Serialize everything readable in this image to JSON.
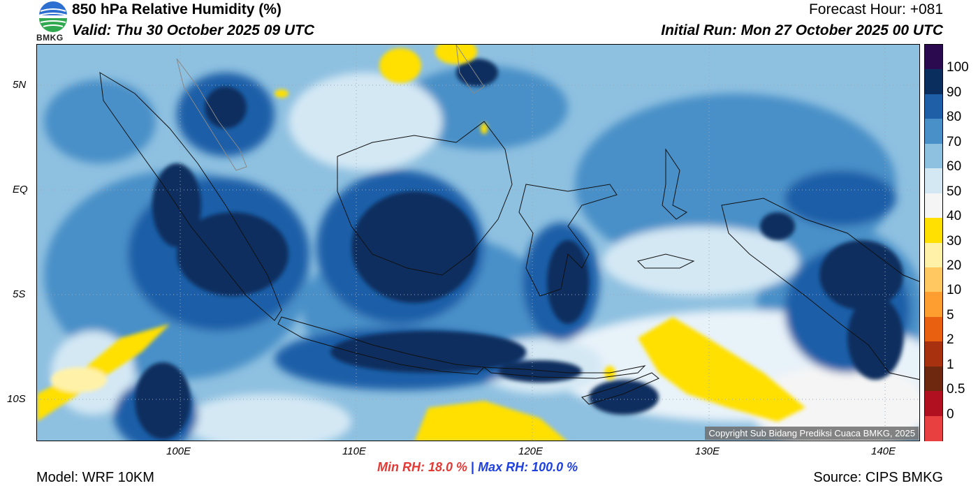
{
  "header": {
    "title": "850 hPa Relative Humidity (%)",
    "valid": "Valid: Thu 30 October 2025 09 UTC",
    "forecast_hour": "Forecast Hour: +081",
    "initial_run": "Initial Run: Mon 27 October 2025 00 UTC",
    "logo_text": "BMKG"
  },
  "map": {
    "lat_labels": [
      "5N",
      "EQ",
      "5S",
      "10S"
    ],
    "lon_labels": [
      "100E",
      "110E",
      "120E",
      "130E",
      "140E"
    ],
    "copyright": "Copyright Sub Bidang Prediksi Cuaca BMKG, 2025"
  },
  "colorbar": {
    "labels": [
      "100",
      "90",
      "80",
      "70",
      "60",
      "50",
      "40",
      "30",
      "20",
      "10",
      "5",
      "2",
      "1",
      "0.5",
      "0"
    ],
    "colors": [
      "#2b0a4f",
      "#0a2f5e",
      "#1e5fa8",
      "#4a90c8",
      "#8ec0e0",
      "#d4e8f4",
      "#f5f5f5",
      "#ffe000",
      "#fff2a8",
      "#ffc860",
      "#ff9e30",
      "#e86010",
      "#a83210",
      "#6e2810",
      "#b01020",
      "#e84040"
    ]
  },
  "footer": {
    "min_rh": "Min RH:  18.0 %",
    "separator": "|",
    "max_rh": "Max RH: 100.0 %",
    "model": "Model: WRF 10KM",
    "source": "Source: CIPS BMKG"
  }
}
